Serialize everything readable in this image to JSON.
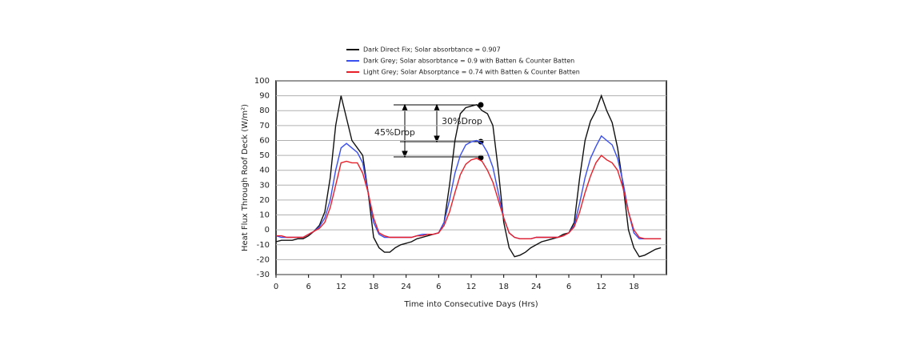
{
  "chart_data": {
    "type": "line",
    "xlabel": "Time into Consecutive Days (Hrs)",
    "ylabel": "Heat Flux Through Roof Deck (W/m²)",
    "annotations": [
      "30%Drop",
      "45%Drop"
    ],
    "x": [
      0,
      1,
      2,
      3,
      4,
      5,
      6,
      7,
      8,
      9,
      10,
      11,
      12,
      13,
      14,
      15,
      16,
      17,
      18,
      19,
      20,
      21,
      22,
      23,
      24,
      25,
      26,
      27,
      28,
      29,
      30,
      31,
      32,
      33,
      34,
      35,
      36,
      37,
      38,
      39,
      40,
      41,
      42,
      43,
      44,
      45,
      46,
      47,
      48,
      49,
      50,
      51,
      52,
      53,
      54,
      55,
      56,
      57,
      58,
      59,
      60,
      61,
      62,
      63,
      64,
      65,
      66,
      67,
      68,
      69,
      70,
      71
    ],
    "series": [
      {
        "name": "Dark Direct Fix; Solar absorbtance = 0.907",
        "color": "#111111",
        "values": [
          -8,
          -7,
          -7,
          -7,
          -6,
          -6,
          -4,
          -1,
          3,
          12,
          35,
          70,
          90,
          75,
          60,
          55,
          50,
          25,
          -5,
          -12,
          -15,
          -15,
          -12,
          -10,
          -9,
          -8,
          -6,
          -5,
          -4,
          -3,
          -2,
          5,
          30,
          60,
          78,
          82,
          83,
          84,
          80,
          78,
          70,
          40,
          5,
          -12,
          -18,
          -17,
          -15,
          -12,
          -10,
          -8,
          -7,
          -6,
          -5,
          -3,
          -2,
          5,
          35,
          60,
          73,
          80,
          90,
          80,
          72,
          55,
          30,
          0,
          -12,
          -18,
          -17,
          -15,
          -13,
          -12
        ]
      },
      {
        "name": "Dark Grey; Solar absorbtance = 0.9 with Batten & Counter Batten",
        "color": "#3a4ff0",
        "values": [
          -4,
          -5,
          -5,
          -5,
          -5,
          -5,
          -3,
          -1,
          2,
          8,
          20,
          40,
          55,
          58,
          55,
          52,
          45,
          25,
          5,
          -3,
          -5,
          -5,
          -5,
          -5,
          -5,
          -5,
          -4,
          -3,
          -3,
          -3,
          -2,
          5,
          20,
          38,
          50,
          57,
          59,
          60,
          58,
          52,
          42,
          25,
          8,
          -2,
          -5,
          -6,
          -6,
          -6,
          -5,
          -5,
          -5,
          -5,
          -5,
          -4,
          -2,
          3,
          18,
          35,
          48,
          56,
          63,
          60,
          57,
          48,
          32,
          12,
          -2,
          -6,
          -6,
          -6,
          -6,
          -6
        ]
      },
      {
        "name": "Light Grey; Solar Absorptance = 0.74 with Batten & Counter Batten",
        "color": "#e8202a",
        "values": [
          -4,
          -4,
          -5,
          -5,
          -5,
          -5,
          -3,
          -1,
          1,
          5,
          15,
          30,
          45,
          46,
          45,
          45,
          38,
          25,
          8,
          -2,
          -4,
          -5,
          -5,
          -5,
          -5,
          -5,
          -4,
          -4,
          -3,
          -3,
          -2,
          3,
          12,
          25,
          37,
          44,
          47,
          48,
          46,
          40,
          32,
          20,
          8,
          -2,
          -5,
          -6,
          -6,
          -6,
          -5,
          -5,
          -5,
          -5,
          -5,
          -4,
          -2,
          2,
          12,
          25,
          36,
          45,
          50,
          47,
          45,
          40,
          28,
          12,
          0,
          -5,
          -6,
          -6,
          -6,
          -6
        ]
      }
    ],
    "xlim": [
      0,
      72
    ],
    "xticks": [
      0,
      6,
      12,
      18,
      24,
      {
        "value": 30,
        "label": "6"
      },
      {
        "value": 36,
        "label": "12"
      },
      {
        "value": 42,
        "label": "18"
      },
      {
        "value": 48,
        "label": "24"
      },
      {
        "value": 54,
        "label": "6"
      },
      {
        "value": 60,
        "label": "12"
      },
      {
        "value": 66,
        "label": "18"
      }
    ],
    "ylim": [
      -30,
      100
    ],
    "yticks": [
      -30,
      -20,
      -10,
      0,
      10,
      20,
      30,
      40,
      50,
      60,
      70,
      80,
      90,
      100
    ],
    "grid": true
  }
}
